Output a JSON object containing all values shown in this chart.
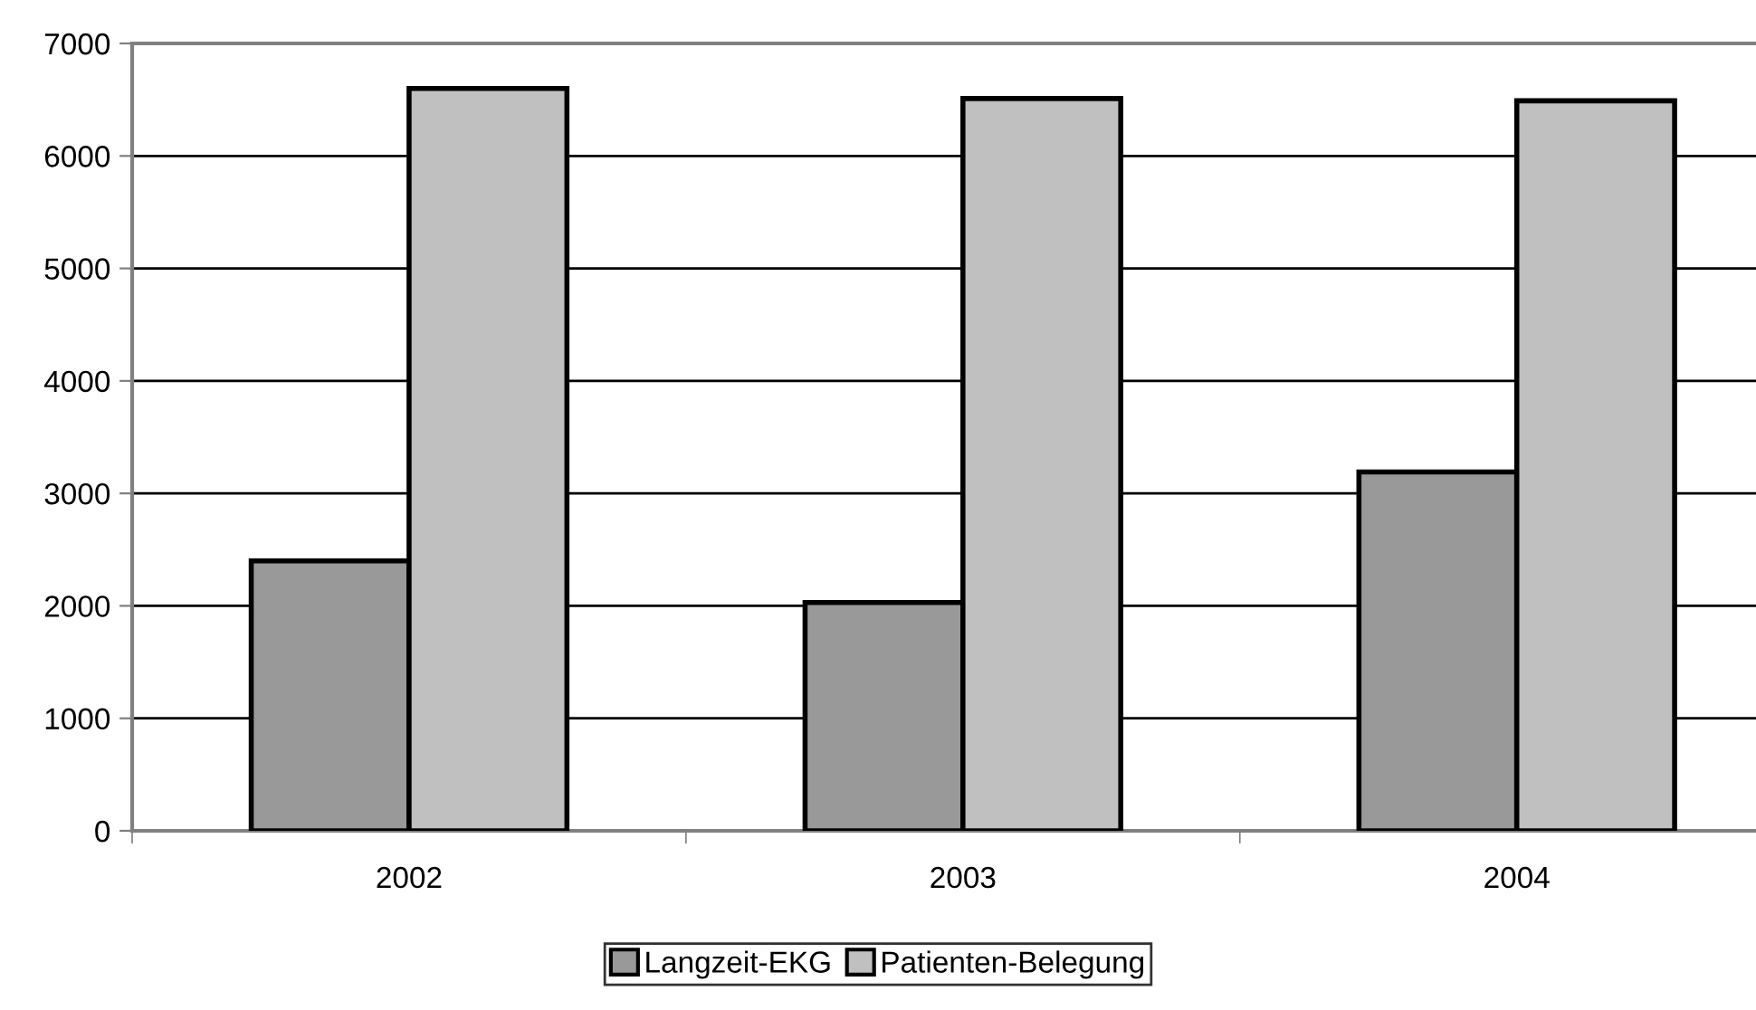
{
  "chart_data": {
    "type": "bar",
    "categories": [
      "2002",
      "2003",
      "2004"
    ],
    "series": [
      {
        "name": "Langzeit-EKG",
        "color": "#999999",
        "values": [
          2400,
          2030,
          3190
        ]
      },
      {
        "name": "Patienten-Belegung",
        "color": "#c0c0c0",
        "values": [
          6600,
          6510,
          6490
        ]
      }
    ],
    "ylim": [
      0,
      7000
    ],
    "yticks": [
      0,
      1000,
      2000,
      3000,
      4000,
      5000,
      6000,
      7000
    ],
    "grid": "y",
    "legend": "bottom"
  }
}
